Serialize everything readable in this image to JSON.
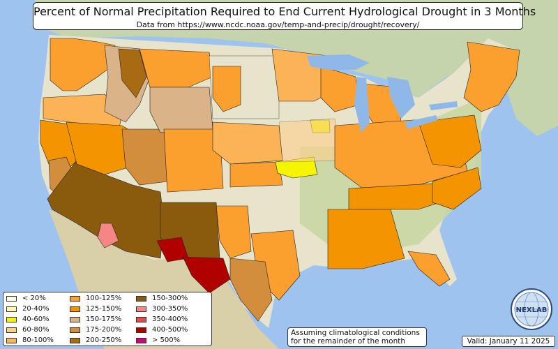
{
  "title": "Percent of Normal Precipitation Required to End Current Hydrological Drought in 3 Months",
  "subtitle": "Data from https://www.ncdc.noaa.gov/temp-and-precip/drought/recovery/",
  "legend": [
    {
      "label": "< 20%",
      "color": "#ffffe6"
    },
    {
      "label": "20-40%",
      "color": "#ffffb3"
    },
    {
      "label": "40-60%",
      "color": "#f5f500"
    },
    {
      "label": "60-80%",
      "color": "#fdd08c"
    },
    {
      "label": "80-100%",
      "color": "#fcb356"
    },
    {
      "label": "100-125%",
      "color": "#fb9f2e"
    },
    {
      "label": "125-150%",
      "color": "#f39400"
    },
    {
      "label": "150-175%",
      "color": "#dbb389"
    },
    {
      "label": "175-200%",
      "color": "#d28d3d"
    },
    {
      "label": "200-250%",
      "color": "#a86a13"
    },
    {
      "label": "150-300%",
      "color": "#8a5a0d"
    },
    {
      "label": "300-350%",
      "color": "#f58686"
    },
    {
      "label": "350-400%",
      "color": "#e54848"
    },
    {
      "label": "400-500%",
      "color": "#b00000"
    },
    {
      "label": "> 500%",
      "color": "#d6007a"
    }
  ],
  "note": {
    "line1": "Assuming climatological conditions",
    "line2": "for the remainder of the month"
  },
  "valid": "Valid: January 11 2025",
  "logo": {
    "text": "NEXLAB",
    "icon": "globe-icon"
  },
  "colors": {
    "ocean": "#9ec3ee",
    "land": "#e8e4cc",
    "land_green": "#b9cf97",
    "mexico": "#d9cfa8",
    "canada": "#c6d4ad",
    "lakes": "#8fb8e8"
  }
}
